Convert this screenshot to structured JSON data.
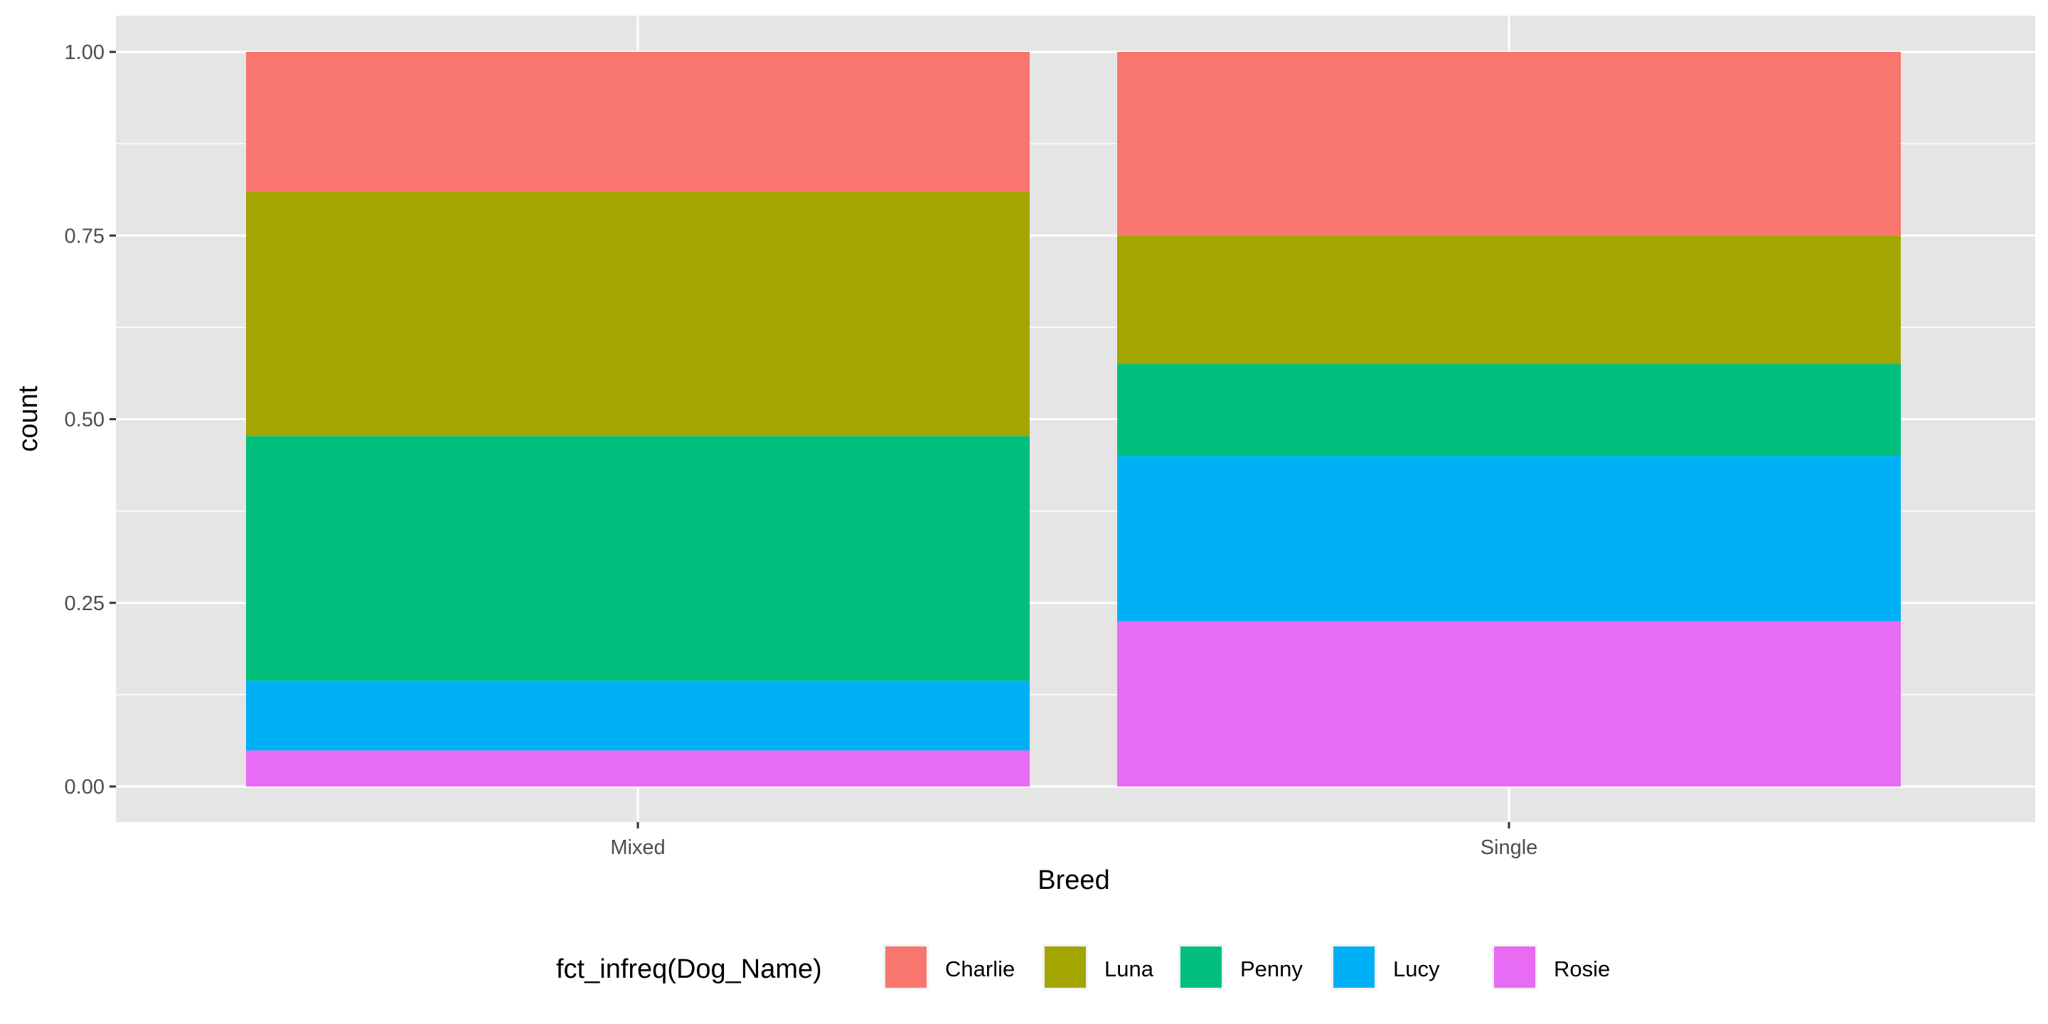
{
  "chart_data": {
    "type": "bar",
    "stacked": true,
    "position": "fill",
    "xlabel": "Breed",
    "ylabel": "count",
    "categories": [
      "Mixed",
      "Single"
    ],
    "yticks": [
      "0.00",
      "0.25",
      "0.50",
      "0.75",
      "1.00"
    ],
    "ylim": [
      0,
      1
    ],
    "grid": true,
    "legend_position": "bottom",
    "legend_title": "fct_infreq(Dog_Name)",
    "series": [
      {
        "name": "Charlie",
        "color": "#F8766D",
        "values": [
          0.19,
          0.25
        ]
      },
      {
        "name": "Luna",
        "color": "#A3A500",
        "values": [
          0.333,
          0.175
        ]
      },
      {
        "name": "Penny",
        "color": "#00BF7D",
        "values": [
          0.333,
          0.125
        ]
      },
      {
        "name": "Lucy",
        "color": "#00B0F6",
        "values": [
          0.095,
          0.225
        ]
      },
      {
        "name": "Rosie",
        "color": "#E76BF3",
        "values": [
          0.049,
          0.225
        ]
      }
    ],
    "panel_background": "#EBEBEB",
    "grid_color": "#FFFFFF"
  }
}
